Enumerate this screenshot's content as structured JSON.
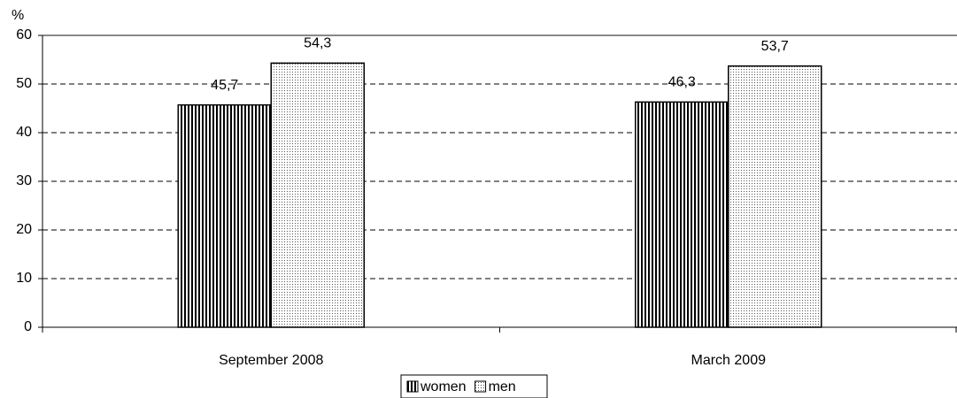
{
  "chart_data": {
    "type": "bar",
    "ylabel": "%",
    "categories": [
      "September 2008",
      "March 2009"
    ],
    "series": [
      {
        "name": "women",
        "color": "#000000",
        "values": [
          45.7,
          46.3
        ],
        "value_labels": [
          "45,7",
          "46,3"
        ]
      },
      {
        "name": "men",
        "color": "#000000",
        "values": [
          54.3,
          53.7
        ],
        "value_labels": [
          "54,3",
          "53,7"
        ]
      }
    ],
    "ylim": [
      0,
      60
    ],
    "yticks": [
      0,
      10,
      20,
      30,
      40,
      50,
      60
    ],
    "grid": true,
    "legend": "bottom"
  }
}
